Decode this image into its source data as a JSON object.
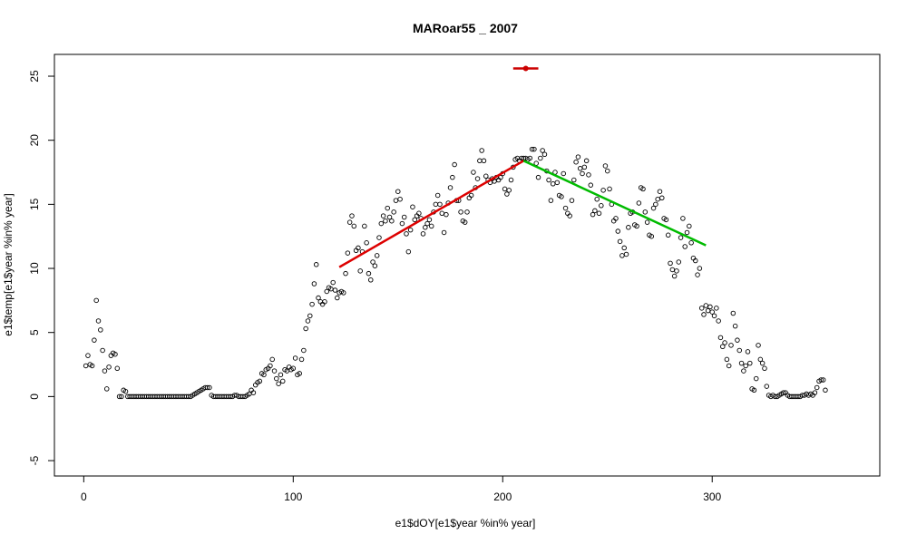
{
  "chart_data": {
    "type": "scatter",
    "title": "MARoar55 _ 2007",
    "xlabel": "e1$dOY[e1$year %in% year]",
    "ylabel": "e1$temp[e1$year %in% year]",
    "xlim": [
      -14,
      380
    ],
    "ylim": [
      -6.2,
      26.7
    ],
    "x_ticks": [
      0,
      100,
      200,
      300
    ],
    "y_ticks": [
      -5,
      0,
      5,
      10,
      15,
      20,
      25
    ],
    "grid": false,
    "legend": "none",
    "colors": {
      "points": "#000000",
      "rising_fit": "#dd0000",
      "falling_fit": "#00bb00",
      "marker": "#cc0000"
    },
    "points": [
      [
        1,
        2.4
      ],
      [
        2,
        3.2
      ],
      [
        3,
        2.5
      ],
      [
        4,
        2.4
      ],
      [
        5,
        4.4
      ],
      [
        6,
        7.5
      ],
      [
        7,
        5.9
      ],
      [
        8,
        5.2
      ],
      [
        9,
        3.6
      ],
      [
        10,
        2.0
      ],
      [
        11,
        0.6
      ],
      [
        12,
        2.3
      ],
      [
        13,
        3.2
      ],
      [
        14,
        3.4
      ],
      [
        15,
        3.3
      ],
      [
        16,
        2.2
      ],
      [
        17,
        0.0
      ],
      [
        18,
        0.0
      ],
      [
        19,
        0.5
      ],
      [
        20,
        0.4
      ],
      [
        21,
        0.0
      ],
      [
        22,
        0.0
      ],
      [
        23,
        0.0
      ],
      [
        24,
        0.0
      ],
      [
        25,
        0.0
      ],
      [
        26,
        0.0
      ],
      [
        27,
        0.0
      ],
      [
        28,
        0.0
      ],
      [
        29,
        0.0
      ],
      [
        30,
        0.0
      ],
      [
        31,
        0.0
      ],
      [
        32,
        0.0
      ],
      [
        33,
        0.0
      ],
      [
        34,
        0.0
      ],
      [
        35,
        0.0
      ],
      [
        36,
        0.0
      ],
      [
        37,
        0.0
      ],
      [
        38,
        0.0
      ],
      [
        39,
        0.0
      ],
      [
        40,
        0.0
      ],
      [
        41,
        0.0
      ],
      [
        42,
        0.0
      ],
      [
        43,
        0.0
      ],
      [
        44,
        0.0
      ],
      [
        45,
        0.0
      ],
      [
        46,
        0.0
      ],
      [
        47,
        0.0
      ],
      [
        48,
        0.0
      ],
      [
        49,
        0.0
      ],
      [
        50,
        0.0
      ],
      [
        51,
        0.0
      ],
      [
        52,
        0.1
      ],
      [
        53,
        0.2
      ],
      [
        54,
        0.3
      ],
      [
        55,
        0.4
      ],
      [
        56,
        0.5
      ],
      [
        57,
        0.6
      ],
      [
        58,
        0.7
      ],
      [
        59,
        0.7
      ],
      [
        60,
        0.7
      ],
      [
        61,
        0.1
      ],
      [
        62,
        0.0
      ],
      [
        63,
        0.0
      ],
      [
        64,
        0.0
      ],
      [
        65,
        0.0
      ],
      [
        66,
        0.0
      ],
      [
        67,
        0.0
      ],
      [
        68,
        0.0
      ],
      [
        69,
        0.0
      ],
      [
        70,
        0.0
      ],
      [
        71,
        0.0
      ],
      [
        72,
        0.1
      ],
      [
        73,
        0.1
      ],
      [
        74,
        0.0
      ],
      [
        75,
        0.0
      ],
      [
        76,
        0.0
      ],
      [
        77,
        0.0
      ],
      [
        78,
        0.1
      ],
      [
        79,
        0.2
      ],
      [
        80,
        0.5
      ],
      [
        81,
        0.3
      ],
      [
        82,
        0.9
      ],
      [
        83,
        1.1
      ],
      [
        84,
        1.2
      ],
      [
        85,
        1.8
      ],
      [
        86,
        1.7
      ],
      [
        87,
        2.1
      ],
      [
        88,
        2.2
      ],
      [
        89,
        2.4
      ],
      [
        90,
        2.9
      ],
      [
        91,
        2.0
      ],
      [
        92,
        1.4
      ],
      [
        93,
        1.0
      ],
      [
        94,
        1.7
      ],
      [
        95,
        1.2
      ],
      [
        96,
        2.1
      ],
      [
        97,
        2.0
      ],
      [
        98,
        2.3
      ],
      [
        99,
        2.1
      ],
      [
        100,
        2.2
      ],
      [
        101,
        3.0
      ],
      [
        102,
        1.7
      ],
      [
        103,
        1.8
      ],
      [
        104,
        2.9
      ],
      [
        105,
        3.6
      ],
      [
        106,
        5.3
      ],
      [
        107,
        5.9
      ],
      [
        108,
        6.3
      ],
      [
        109,
        7.2
      ],
      [
        110,
        8.8
      ],
      [
        111,
        10.3
      ],
      [
        112,
        7.7
      ],
      [
        113,
        7.4
      ],
      [
        114,
        7.2
      ],
      [
        115,
        7.4
      ],
      [
        116,
        8.2
      ],
      [
        117,
        8.5
      ],
      [
        118,
        8.4
      ],
      [
        119,
        8.9
      ],
      [
        120,
        8.3
      ],
      [
        121,
        7.7
      ],
      [
        122,
        8.1
      ],
      [
        123,
        8.2
      ],
      [
        124,
        8.1
      ],
      [
        125,
        9.6
      ],
      [
        126,
        11.2
      ],
      [
        127,
        13.6
      ],
      [
        128,
        14.1
      ],
      [
        129,
        13.3
      ],
      [
        130,
        11.4
      ],
      [
        131,
        11.6
      ],
      [
        132,
        9.8
      ],
      [
        133,
        11.3
      ],
      [
        134,
        13.3
      ],
      [
        135,
        12.0
      ],
      [
        136,
        9.6
      ],
      [
        137,
        9.1
      ],
      [
        138,
        10.5
      ],
      [
        139,
        10.2
      ],
      [
        140,
        11.0
      ],
      [
        141,
        12.4
      ],
      [
        142,
        13.5
      ],
      [
        143,
        14.1
      ],
      [
        144,
        13.7
      ],
      [
        145,
        14.7
      ],
      [
        146,
        14.0
      ],
      [
        147,
        13.7
      ],
      [
        148,
        14.4
      ],
      [
        149,
        15.3
      ],
      [
        150,
        16.0
      ],
      [
        151,
        15.4
      ],
      [
        152,
        13.5
      ],
      [
        153,
        14.0
      ],
      [
        154,
        12.7
      ],
      [
        155,
        11.3
      ],
      [
        156,
        13.0
      ],
      [
        157,
        14.8
      ],
      [
        158,
        13.8
      ],
      [
        159,
        14.1
      ],
      [
        160,
        14.3
      ],
      [
        161,
        13.9
      ],
      [
        162,
        12.7
      ],
      [
        163,
        13.2
      ],
      [
        164,
        13.5
      ],
      [
        165,
        13.8
      ],
      [
        166,
        13.3
      ],
      [
        167,
        14.4
      ],
      [
        168,
        15.0
      ],
      [
        169,
        15.7
      ],
      [
        170,
        15.0
      ],
      [
        171,
        14.3
      ],
      [
        172,
        12.8
      ],
      [
        173,
        14.2
      ],
      [
        174,
        15.1
      ],
      [
        175,
        16.3
      ],
      [
        176,
        17.1
      ],
      [
        177,
        18.1
      ],
      [
        178,
        15.3
      ],
      [
        179,
        15.3
      ],
      [
        180,
        14.4
      ],
      [
        181,
        13.7
      ],
      [
        182,
        13.6
      ],
      [
        183,
        14.4
      ],
      [
        184,
        15.5
      ],
      [
        185,
        15.7
      ],
      [
        186,
        17.5
      ],
      [
        187,
        16.3
      ],
      [
        188,
        17.0
      ],
      [
        189,
        18.4
      ],
      [
        190,
        19.2
      ],
      [
        191,
        18.4
      ],
      [
        192,
        17.2
      ],
      [
        193,
        16.9
      ],
      [
        194,
        16.7
      ],
      [
        195,
        17.0
      ],
      [
        196,
        16.8
      ],
      [
        197,
        17.1
      ],
      [
        198,
        16.9
      ],
      [
        199,
        17.1
      ],
      [
        200,
        17.4
      ],
      [
        201,
        16.2
      ],
      [
        202,
        15.8
      ],
      [
        203,
        16.1
      ],
      [
        204,
        16.9
      ],
      [
        205,
        17.9
      ],
      [
        206,
        18.5
      ],
      [
        207,
        18.6
      ],
      [
        208,
        18.4
      ],
      [
        209,
        18.6
      ],
      [
        210,
        18.6
      ],
      [
        211,
        18.6
      ],
      [
        212,
        18.5
      ],
      [
        213,
        18.6
      ],
      [
        214,
        19.3
      ],
      [
        215,
        19.3
      ],
      [
        216,
        18.2
      ],
      [
        217,
        17.1
      ],
      [
        218,
        18.6
      ],
      [
        219,
        19.2
      ],
      [
        220,
        18.9
      ],
      [
        221,
        17.6
      ],
      [
        222,
        16.9
      ],
      [
        223,
        15.3
      ],
      [
        224,
        16.6
      ],
      [
        225,
        17.5
      ],
      [
        226,
        16.7
      ],
      [
        227,
        15.7
      ],
      [
        228,
        15.6
      ],
      [
        229,
        17.4
      ],
      [
        230,
        14.7
      ],
      [
        231,
        14.3
      ],
      [
        232,
        14.1
      ],
      [
        233,
        15.3
      ],
      [
        234,
        16.9
      ],
      [
        235,
        18.3
      ],
      [
        236,
        18.7
      ],
      [
        237,
        17.8
      ],
      [
        238,
        17.4
      ],
      [
        239,
        17.9
      ],
      [
        240,
        18.4
      ],
      [
        241,
        17.3
      ],
      [
        242,
        16.5
      ],
      [
        243,
        14.2
      ],
      [
        244,
        14.5
      ],
      [
        245,
        15.4
      ],
      [
        246,
        14.3
      ],
      [
        247,
        14.9
      ],
      [
        248,
        16.1
      ],
      [
        249,
        18.0
      ],
      [
        250,
        17.6
      ],
      [
        251,
        16.2
      ],
      [
        252,
        15.0
      ],
      [
        253,
        13.7
      ],
      [
        254,
        13.9
      ],
      [
        255,
        12.9
      ],
      [
        256,
        12.1
      ],
      [
        257,
        11.0
      ],
      [
        258,
        11.6
      ],
      [
        259,
        11.1
      ],
      [
        260,
        13.2
      ],
      [
        261,
        14.3
      ],
      [
        262,
        14.4
      ],
      [
        263,
        13.4
      ],
      [
        264,
        13.3
      ],
      [
        265,
        15.1
      ],
      [
        266,
        16.3
      ],
      [
        267,
        16.2
      ],
      [
        268,
        14.4
      ],
      [
        269,
        13.6
      ],
      [
        270,
        12.6
      ],
      [
        271,
        12.5
      ],
      [
        272,
        14.7
      ],
      [
        273,
        15.0
      ],
      [
        274,
        15.4
      ],
      [
        275,
        16.0
      ],
      [
        276,
        15.5
      ],
      [
        277,
        13.9
      ],
      [
        278,
        13.8
      ],
      [
        279,
        12.6
      ],
      [
        280,
        10.4
      ],
      [
        281,
        9.9
      ],
      [
        282,
        9.4
      ],
      [
        283,
        9.8
      ],
      [
        284,
        10.5
      ],
      [
        285,
        12.4
      ],
      [
        286,
        13.9
      ],
      [
        287,
        11.7
      ],
      [
        288,
        12.8
      ],
      [
        289,
        13.3
      ],
      [
        290,
        12.0
      ],
      [
        291,
        10.8
      ],
      [
        292,
        10.6
      ],
      [
        293,
        9.5
      ],
      [
        294,
        10.0
      ],
      [
        295,
        6.9
      ],
      [
        296,
        6.4
      ],
      [
        297,
        7.1
      ],
      [
        298,
        6.7
      ],
      [
        299,
        7.0
      ],
      [
        300,
        6.6
      ],
      [
        301,
        6.3
      ],
      [
        302,
        6.9
      ],
      [
        303,
        5.9
      ],
      [
        304,
        4.6
      ],
      [
        305,
        3.9
      ],
      [
        306,
        4.2
      ],
      [
        307,
        2.9
      ],
      [
        308,
        2.4
      ],
      [
        309,
        4.0
      ],
      [
        310,
        6.5
      ],
      [
        311,
        5.5
      ],
      [
        312,
        4.4
      ],
      [
        313,
        3.6
      ],
      [
        314,
        2.6
      ],
      [
        315,
        2.0
      ],
      [
        316,
        2.4
      ],
      [
        317,
        3.5
      ],
      [
        318,
        2.6
      ],
      [
        319,
        0.6
      ],
      [
        320,
        0.5
      ],
      [
        321,
        1.4
      ],
      [
        322,
        4.0
      ],
      [
        323,
        2.9
      ],
      [
        324,
        2.6
      ],
      [
        325,
        2.2
      ],
      [
        326,
        0.8
      ],
      [
        327,
        0.1
      ],
      [
        328,
        0.0
      ],
      [
        329,
        0.1
      ],
      [
        330,
        0.0
      ],
      [
        331,
        0.0
      ],
      [
        332,
        0.1
      ],
      [
        333,
        0.2
      ],
      [
        334,
        0.3
      ],
      [
        335,
        0.3
      ],
      [
        336,
        0.1
      ],
      [
        337,
        0.0
      ],
      [
        338,
        0.0
      ],
      [
        339,
        0.0
      ],
      [
        340,
        0.0
      ],
      [
        341,
        0.0
      ],
      [
        342,
        0.0
      ],
      [
        343,
        0.1
      ],
      [
        344,
        0.1
      ],
      [
        345,
        0.2
      ],
      [
        346,
        0.1
      ],
      [
        347,
        0.2
      ],
      [
        348,
        0.1
      ],
      [
        349,
        0.3
      ],
      [
        350,
        0.7
      ],
      [
        351,
        1.2
      ],
      [
        352,
        1.3
      ],
      [
        353,
        1.3
      ],
      [
        354,
        0.5
      ]
    ],
    "fit_lines": [
      {
        "x": [
          122,
          210
        ],
        "y": [
          10.1,
          18.4
        ],
        "color": "#dd0000"
      },
      {
        "x": [
          210,
          297
        ],
        "y": [
          18.4,
          11.8
        ],
        "color": "#00bb00"
      }
    ],
    "marker": {
      "x_range": [
        205,
        217
      ],
      "x": 211,
      "y": 25.6,
      "color": "#cc0000"
    }
  }
}
